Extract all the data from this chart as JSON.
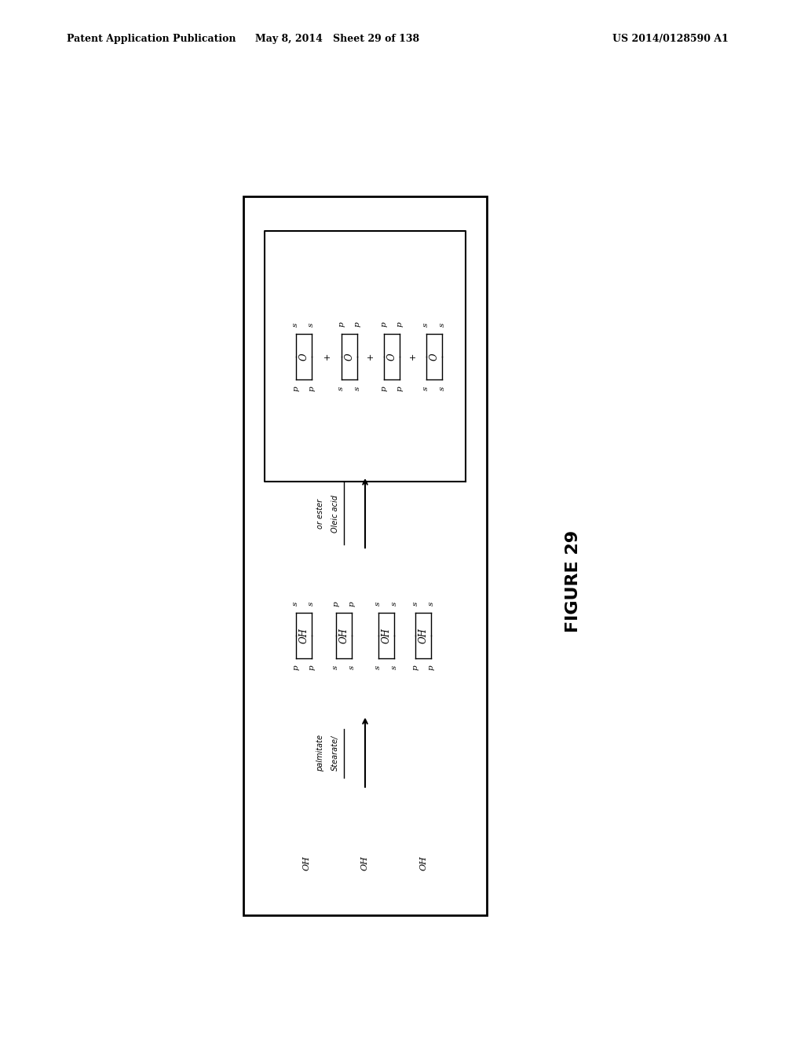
{
  "header_left": "Patent Application Publication",
  "header_mid": "May 8, 2014   Sheet 29 of 138",
  "header_right": "US 2014/0128590 A1",
  "figure_label": "FIGURE 29",
  "background_color": "#ffffff",
  "border_color": "#000000",
  "text_color": "#000000"
}
